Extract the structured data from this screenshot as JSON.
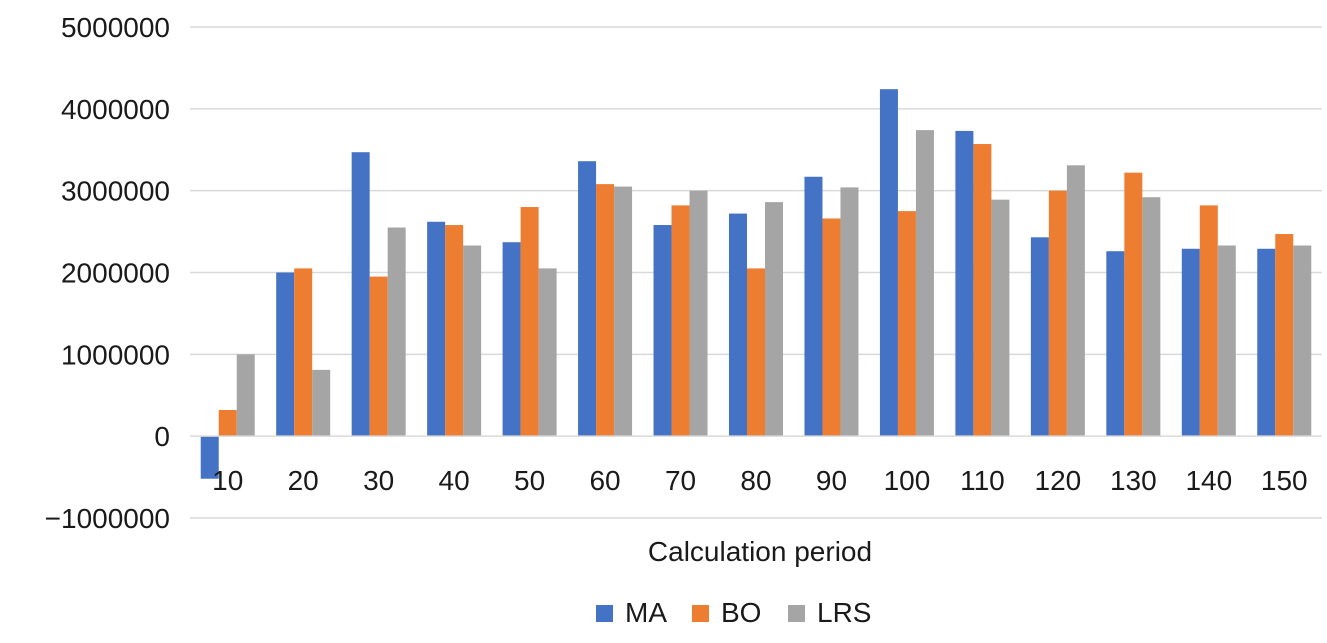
{
  "chart_data": {
    "type": "bar",
    "title": "",
    "xlabel": "Calculation period",
    "ylabel": "",
    "ylim": [
      -1000000,
      5000000
    ],
    "yticks": [
      -1000000,
      0,
      1000000,
      2000000,
      3000000,
      4000000,
      5000000
    ],
    "ytick_labels": [
      "−1000000",
      "0",
      "1000000",
      "2000000",
      "3000000",
      "4000000",
      "5000000"
    ],
    "grid": "horizontal",
    "legend_position": "bottom",
    "categories": [
      "10",
      "20",
      "30",
      "40",
      "50",
      "60",
      "70",
      "80",
      "90",
      "100",
      "110",
      "120",
      "130",
      "140",
      "150"
    ],
    "series": [
      {
        "name": "MA",
        "color": "#4472c4",
        "values": [
          -520000,
          2000000,
          3470000,
          2620000,
          2370000,
          3360000,
          2580000,
          2720000,
          3170000,
          4240000,
          3730000,
          2430000,
          2260000,
          2290000,
          2290000
        ]
      },
      {
        "name": "BO",
        "color": "#ed7d31",
        "values": [
          320000,
          2050000,
          1950000,
          2580000,
          2800000,
          3080000,
          2820000,
          2050000,
          2660000,
          2750000,
          3570000,
          3000000,
          3220000,
          2820000,
          2470000
        ]
      },
      {
        "name": "LRS",
        "color": "#a5a5a5",
        "values": [
          1000000,
          810000,
          2550000,
          2330000,
          2050000,
          3050000,
          3000000,
          2860000,
          3040000,
          3740000,
          2890000,
          3310000,
          2920000,
          2330000,
          2330000
        ]
      }
    ]
  }
}
